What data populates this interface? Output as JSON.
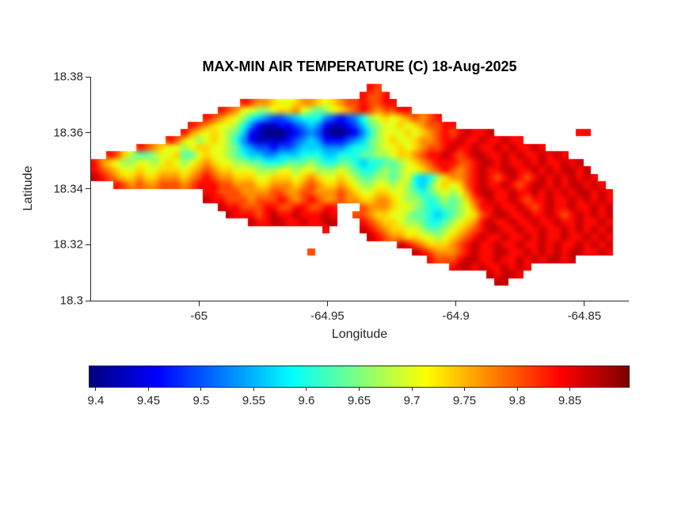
{
  "chart_data": {
    "type": "heatmap",
    "title": "MAX-MIN AIR TEMPERATURE (C) 18-Aug-2025",
    "xlabel": "Longitude",
    "ylabel": "Latitude",
    "units": "C",
    "xlim": [
      -65.042,
      -64.833
    ],
    "ylim": [
      18.3,
      18.38
    ],
    "xticks": [
      -65,
      -64.95,
      -64.9,
      -64.85
    ],
    "xtick_labels": [
      "-65",
      "-64.95",
      "-64.9",
      "-64.85"
    ],
    "yticks": [
      18.38,
      18.36,
      18.34,
      18.32,
      18.3
    ],
    "ytick_labels": [
      "18.38",
      "18.36",
      "18.34",
      "18.32",
      "18.3"
    ],
    "colormap": "jet",
    "grid_lines": "off",
    "colorbar": {
      "orientation": "horizontal",
      "range": [
        9.394,
        9.906
      ],
      "ticks": [
        9.4,
        9.45,
        9.5,
        9.55,
        9.6,
        9.65,
        9.7,
        9.75,
        9.8,
        9.85
      ],
      "tick_labels": [
        "9.4",
        "9.45",
        "9.5",
        "9.55",
        "9.6",
        "9.65",
        "9.7",
        "9.75",
        "9.8",
        "9.85"
      ]
    },
    "grid": {
      "cols": 72,
      "rows": 30,
      "cell_encoding": "Each char is a hex code 0-15; temperature value = 9.394 + (code/15)*(9.906-9.394) C, colored with jet colormap. Runs are [rowIndex, startCol, [chunk strings joined]]. Cells not covered by a run are sea (no data).",
      "runs": [
        [
          1,
          37,
          [
            "dc"
          ]
        ],
        [
          2,
          36,
          [
            "dccd"
          ]
        ],
        [
          3,
          20,
          [
            "dcbba99abb",
            "a9abccdccd",
            "d"
          ]
        ],
        [
          4,
          17,
          [
            "dcb99889aa",
            "b98789abcd",
            "cbccdd"
          ]
        ],
        [
          5,
          15,
          [
            "dcba986543",
            "3456664323",
            "4689a9abcb",
            "cd"
          ]
        ],
        [
          6,
          13,
          [
            "dcba998642",
            "1122345421",
            "12357899a9",
            "abccdd"
          ]
        ],
        [
          7,
          12,
          [
            "dba9a98752",
            "1000123431",
            "0012468999",
            "a9abcdcded",
            "de"
          ]
        ],
        [
          7,
          65,
          [
            "dd"
          ]
        ],
        [
          8,
          10,
          [
            "dca989a986",
            "4211112345",
            "4222345789",
            "a99abbcdde",
            "ddeddedd"
          ]
        ],
        [
          9,
          6,
          [
            "dcba9989aa",
            "9987543323",
            "3455544456",
            "67899a9abc",
            "cdeddedde",
            "dedded"
          ]
        ],
        [
          10,
          2,
          [
            "dca877899a",
            "779a998765",
            "5445556665",
            "566677889a",
            "abcddedcde",
            "edded",
            "eddeded"
          ]
        ],
        [
          11,
          0,
          [
            "dba9889989",
            "a989aba998",
            "8776667778",
            "7667765667",
            "789abcdddc",
            "cdeededde",
            "deddede"
          ]
        ],
        [
          12,
          0,
          [
            "dcba99a99a",
            "aa9abcbaa9",
            "9988899899",
            "8889876678",
            "7899abcdcb",
            "cdeddeedded",
            "edeede"
          ]
        ],
        [
          13,
          0,
          [
            "edcbaabaab",
            "bbabcdcbba",
            "aa99aaa9ab",
            "a99a987788",
            "7896568abb",
            "cdedcdedcd",
            "ede",
            "deded"
          ]
        ],
        [
          14,
          3,
          [
            "dcbcbbcccb",
            "cdddccbbba",
            "abbbabcbaa",
            "ba98899898",
            "6579a9acde",
            "ddedcdeede",
            "de",
            "eded"
          ]
        ],
        [
          15,
          15,
          [
            "ddcccbbbbc",
            "cbbccbbbcb",
            "a99aa99876",
            "78989bdeed",
            "deddededede",
            "eded"
          ]
        ],
        [
          16,
          15,
          [
            "eddcccbccc",
            "dcbcdcbbcb",
            "baabba9887",
            "67878acded",
            "dedcddeddede",
            "ded"
          ]
        ],
        [
          17,
          17,
          [
            "eddcccddcc",
            "ddccdd"
          ]
        ],
        [
          17,
          36,
          [
            "cbbba99876",
            "67789bdded",
            "dedcdeddedde",
            "de"
          ]
        ],
        [
          18,
          18,
          [
            "edddcdedde",
            "ddded"
          ]
        ],
        [
          18,
          35,
          [
            "c"
          ]
        ],
        [
          18,
          36,
          [
            "cbaa998776",
            "56789acdee",
            "ddeddedcdeded",
            "e"
          ]
        ],
        [
          19,
          21,
          [
            "eddeeddedd",
            "ee"
          ]
        ],
        [
          19,
          36,
          [
            "dcbaa98876",
            "6789abdedd",
            "eddeddeddedde",
            "d"
          ]
        ],
        [
          20,
          31,
          [
            "d"
          ]
        ],
        [
          20,
          36,
          [
            "edcbaa9987",
            "789abcdeed",
            "deddeddedede",
            "de"
          ]
        ],
        [
          21,
          37,
          [
            "edcbbaa998",
            "9abcdedded",
            "dededdedded",
            "ed"
          ]
        ],
        [
          22,
          41,
          [
            "edcbaaabcd",
            "eddeddedde",
            "deddeded",
            "e"
          ]
        ],
        [
          23,
          29,
          [
            "c"
          ]
        ],
        [
          23,
          43,
          [
            "edcbbbcded",
            "deeddedede",
            "deed",
            "ded"
          ]
        ],
        [
          24,
          45,
          [
            "dcccdeedde",
            "ddededee",
            "de"
          ]
        ],
        [
          25,
          48,
          [
            "deededdeded"
          ]
        ],
        [
          26,
          53,
          [
            "edeed"
          ]
        ],
        [
          27,
          54,
          [
            "ee"
          ]
        ]
      ]
    }
  }
}
